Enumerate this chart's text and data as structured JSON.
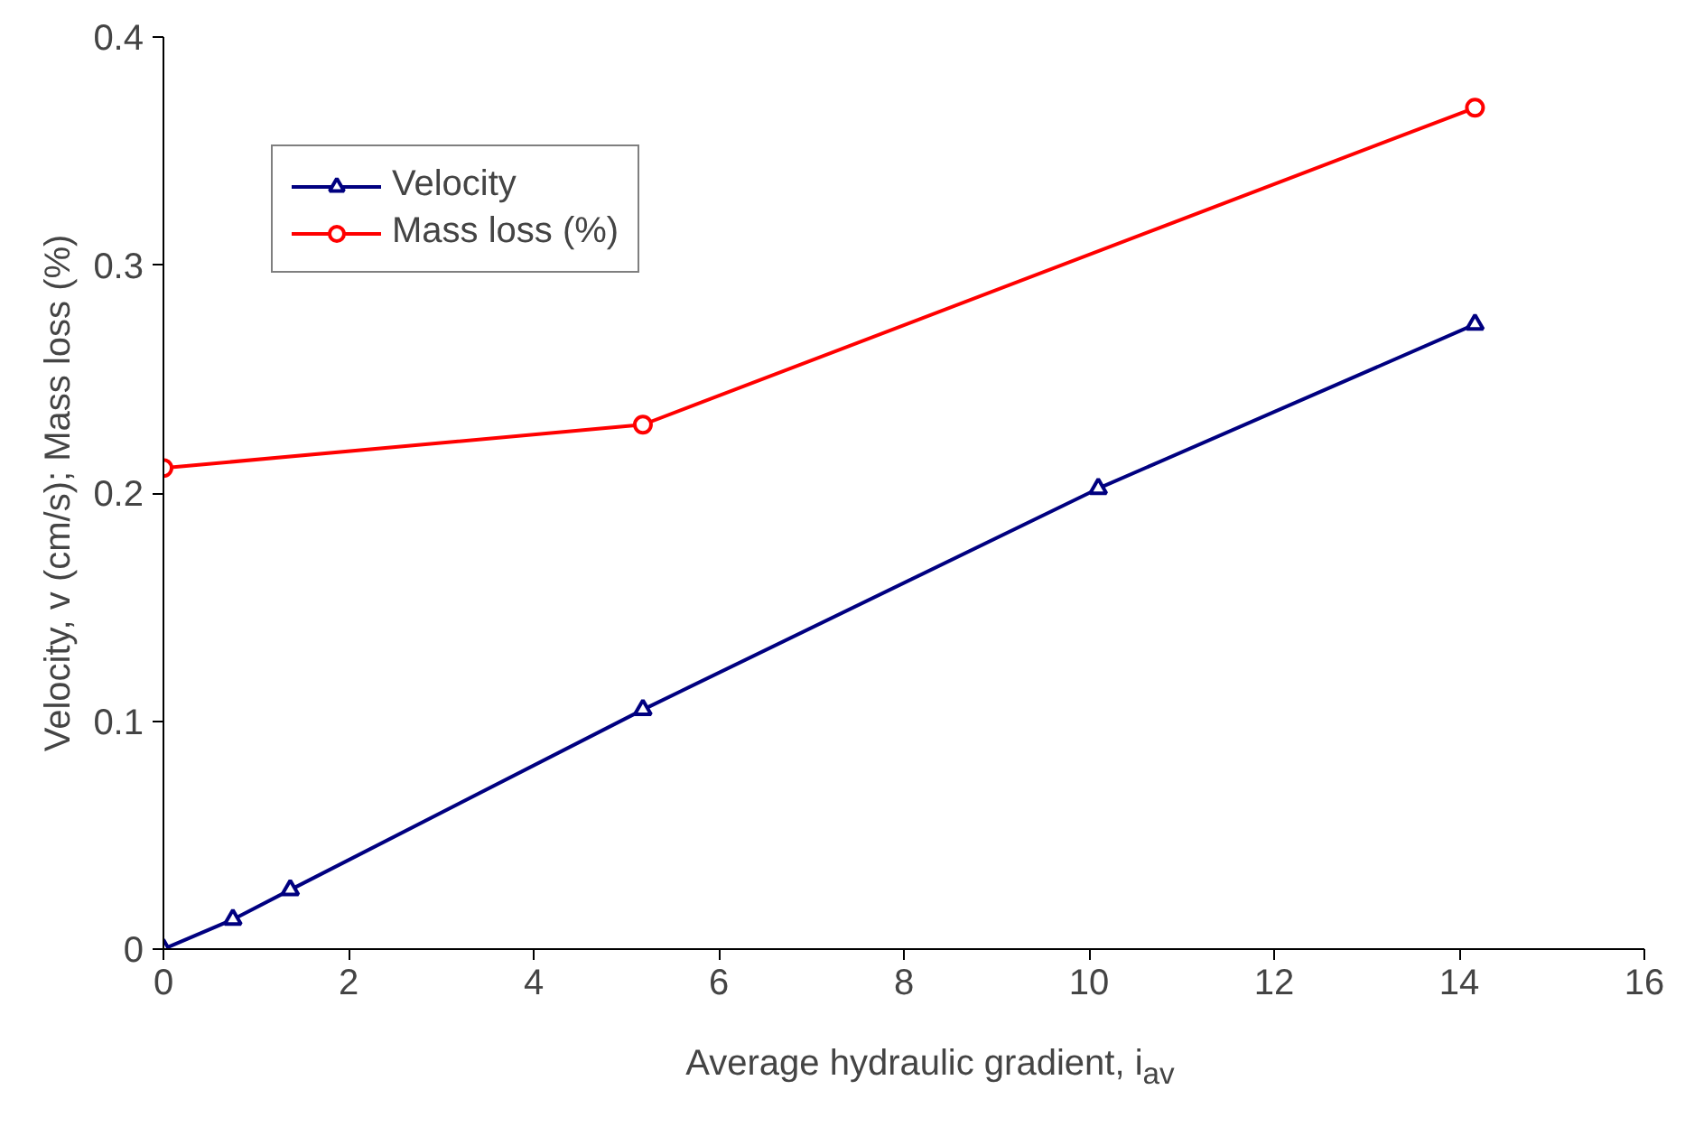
{
  "chart_data": {
    "type": "line",
    "xlabel": "Average hydraulic gradient, i$_{av}$",
    "ylabel": "Velocity, v (cm/s); Mass loss (%)",
    "xlim": [
      0,
      16
    ],
    "xticks": [
      0,
      2,
      4,
      6,
      8,
      10,
      12,
      14,
      16
    ],
    "ylim": [
      0,
      0.4
    ],
    "yticks": [
      0,
      0.1,
      0.2,
      0.3,
      0.4
    ],
    "grid": false,
    "legend": "top left",
    "series": [
      {
        "name": "Velocity",
        "color": "#000080",
        "marker": "triangle",
        "x": [
          0,
          0.75,
          1.37,
          5.18,
          10.1,
          14.17
        ],
        "values": [
          0,
          0.013,
          0.026,
          0.105,
          0.202,
          0.274
        ]
      },
      {
        "name": "Mass loss (%)",
        "color": "#ff0000",
        "marker": "circle",
        "x": [
          0,
          5.18,
          14.17
        ],
        "values": [
          0.211,
          0.23,
          0.369
        ]
      }
    ]
  }
}
